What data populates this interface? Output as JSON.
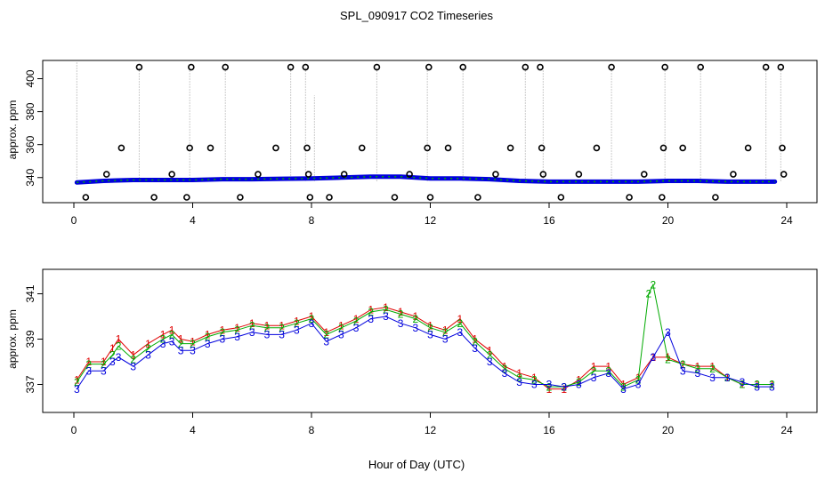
{
  "title": "SPL_090917  CO2 Timeseries",
  "xlabel": "Hour of Day (UTC)",
  "colors": {
    "series1": "#e00000",
    "series2": "#00aa00",
    "series3": "#0000dd",
    "outliers": "#000000",
    "spikes": "#999999",
    "highlight": "#00cccc"
  },
  "chart_data": [
    {
      "type": "scatter",
      "panel": "top",
      "ylabel": "approx. ppm",
      "xlim": [
        0,
        24
      ],
      "ylim": [
        328,
        410
      ],
      "x_ticks": [
        0,
        4,
        8,
        12,
        16,
        20,
        24
      ],
      "y_ticks": [
        340,
        360,
        380,
        400
      ],
      "baseline_series": [
        {
          "name": "1",
          "x": [
            0.1,
            1,
            2,
            3,
            4,
            5,
            6,
            7,
            8,
            9,
            10,
            11,
            12,
            13,
            14,
            15,
            16,
            17,
            18,
            19,
            20,
            21,
            22,
            23,
            23.6
          ],
          "y": [
            337,
            338,
            338.5,
            338.5,
            338.5,
            339,
            339,
            339.3,
            339.5,
            340,
            340.5,
            340.5,
            339.5,
            339.5,
            339,
            338,
            337.5,
            337.5,
            337.5,
            337.5,
            338,
            338,
            337.5,
            337.5,
            337.5
          ]
        }
      ],
      "outliers": {
        "x": [
          0.4,
          1.1,
          1.6,
          2.2,
          2.7,
          3.3,
          3.8,
          3.9,
          3.95,
          4.6,
          5.1,
          5.6,
          6.2,
          6.8,
          7.3,
          7.8,
          7.85,
          7.9,
          7.95,
          8.6,
          9.1,
          9.7,
          10.2,
          10.8,
          11.3,
          11.9,
          11.95,
          12.0,
          12.6,
          13.1,
          13.6,
          14.2,
          14.7,
          15.2,
          15.7,
          15.75,
          15.8,
          16.4,
          17.0,
          17.6,
          18.1,
          18.7,
          19.2,
          19.8,
          19.85,
          19.9,
          20.5,
          21.1,
          21.6,
          22.2,
          22.7,
          23.3,
          23.8,
          23.85,
          23.9
        ],
        "y": [
          328,
          342,
          358,
          407,
          328,
          342,
          328,
          358,
          407,
          358,
          407,
          328,
          342,
          358,
          407,
          407,
          358,
          342,
          328,
          328,
          342,
          358,
          407,
          328,
          342,
          358,
          407,
          328,
          358,
          407,
          328,
          342,
          358,
          407,
          407,
          358,
          342,
          328,
          342,
          358,
          407,
          328,
          342,
          328,
          358,
          407,
          358,
          407,
          328,
          342,
          358,
          407,
          407,
          358,
          342
        ]
      },
      "spikes": {
        "x": [
          0.1,
          2.2,
          3.9,
          5.1,
          7.3,
          7.8,
          8.1,
          10.2,
          11.9,
          13.1,
          15.2,
          15.8,
          18.1,
          19.9,
          21.1,
          23.3,
          23.8
        ],
        "y": [
          410,
          407,
          407,
          407,
          407,
          407,
          390,
          407,
          407,
          407,
          407,
          407,
          407,
          407,
          407,
          407,
          407
        ]
      }
    },
    {
      "type": "scatter",
      "panel": "bottom",
      "ylabel": "approx. ppm",
      "xlim": [
        0,
        24
      ],
      "ylim": [
        336,
        342
      ],
      "x_ticks": [
        0,
        4,
        8,
        12,
        16,
        20,
        24
      ],
      "y_ticks": [
        337,
        339,
        341
      ],
      "series": [
        {
          "name": "1",
          "x": [
            0.1,
            0.5,
            1.0,
            1.3,
            1.5,
            2.0,
            2.5,
            3.0,
            3.3,
            3.6,
            4.0,
            4.5,
            5.0,
            5.5,
            6.0,
            6.5,
            7.0,
            7.5,
            8.0,
            8.5,
            9.0,
            9.5,
            10.0,
            10.5,
            11.0,
            11.5,
            12.0,
            12.5,
            13.0,
            13.5,
            14.0,
            14.5,
            15.0,
            15.5,
            16.0,
            16.5,
            17.0,
            17.5,
            18.0,
            18.5,
            19.0,
            19.5,
            20.0,
            20.5,
            21.0,
            21.5,
            22.0,
            22.5,
            23.0,
            23.5
          ],
          "y": [
            337.2,
            338,
            338,
            338.6,
            339,
            338.3,
            338.8,
            339.2,
            339.4,
            339,
            338.9,
            339.2,
            339.4,
            339.5,
            339.7,
            339.6,
            339.6,
            339.8,
            340,
            339.3,
            339.6,
            339.9,
            340.3,
            340.4,
            340.2,
            340.0,
            339.6,
            339.4,
            339.9,
            339,
            338.5,
            337.8,
            337.5,
            337.3,
            336.8,
            336.8,
            337.2,
            337.8,
            337.8,
            337.0,
            337.3,
            338.2,
            338.2,
            337.9,
            337.8,
            337.8,
            337.3,
            337,
            337,
            337
          ]
        },
        {
          "name": "2",
          "x": [
            0.1,
            0.5,
            1.0,
            1.3,
            1.5,
            2.0,
            2.5,
            3.0,
            3.3,
            3.6,
            4.0,
            4.5,
            5.0,
            5.5,
            6.0,
            6.5,
            7.0,
            7.5,
            8.0,
            8.5,
            9.0,
            9.5,
            10.0,
            10.5,
            11.0,
            11.5,
            12.0,
            12.5,
            13.0,
            13.5,
            14.0,
            14.5,
            15.0,
            15.5,
            16.0,
            16.5,
            17.0,
            17.5,
            18.0,
            18.5,
            19.0,
            19.35,
            19.5,
            20.0,
            20.5,
            21.0,
            21.5,
            22.0,
            22.5,
            23.0,
            23.5
          ],
          "y": [
            337.1,
            337.9,
            337.9,
            338.3,
            338.7,
            338.1,
            338.6,
            339,
            339.2,
            338.8,
            338.8,
            339.1,
            339.3,
            339.4,
            339.6,
            339.5,
            339.5,
            339.7,
            339.9,
            339.2,
            339.5,
            339.8,
            340.2,
            340.3,
            340.1,
            339.9,
            339.5,
            339.3,
            339.7,
            338.9,
            338.3,
            337.7,
            337.3,
            337.2,
            336.9,
            336.9,
            337.1,
            337.6,
            337.6,
            336.9,
            337.2,
            341.0,
            341.4,
            338.1,
            337.9,
            337.7,
            337.7,
            337.3,
            337,
            337,
            337
          ]
        },
        {
          "name": "3",
          "x": [
            0.1,
            0.5,
            1.0,
            1.3,
            1.5,
            2.0,
            2.5,
            3.0,
            3.3,
            3.6,
            4.0,
            4.5,
            5.0,
            5.5,
            6.0,
            6.5,
            7.0,
            7.5,
            8.0,
            8.5,
            9.0,
            9.5,
            10.0,
            10.5,
            11.0,
            11.5,
            12.0,
            12.5,
            13.0,
            13.5,
            14.0,
            14.5,
            15.0,
            15.5,
            16.0,
            16.5,
            17.0,
            17.5,
            18.0,
            18.5,
            19.0,
            19.5,
            20.0,
            20.5,
            21.0,
            21.5,
            22.0,
            22.5,
            23.0,
            23.5
          ],
          "y": [
            336.8,
            337.6,
            337.6,
            338,
            338.2,
            337.8,
            338.3,
            338.8,
            338.9,
            338.5,
            338.5,
            338.8,
            339,
            339.1,
            339.3,
            339.2,
            339.2,
            339.4,
            339.7,
            338.9,
            339.2,
            339.5,
            339.9,
            340,
            339.7,
            339.5,
            339.2,
            339,
            339.3,
            338.6,
            338.0,
            337.5,
            337.1,
            337.0,
            337.0,
            336.9,
            337.0,
            337.3,
            337.5,
            336.8,
            337.0,
            338.2,
            339.3,
            337.6,
            337.5,
            337.3,
            337.3,
            337.1,
            336.9,
            336.9
          ]
        }
      ]
    }
  ]
}
